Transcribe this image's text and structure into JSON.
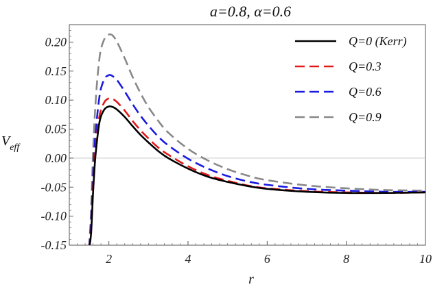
{
  "chart_data": {
    "type": "line",
    "title": "a=0.8, α=0.6",
    "xlabel": "r",
    "ylabel": "V_eff",
    "ylabel_main": "V",
    "ylabel_sub": "eff",
    "xlim": [
      1,
      10
    ],
    "ylim": [
      -0.15,
      0.23
    ],
    "x_ticks": [
      2,
      4,
      6,
      8,
      10
    ],
    "x_tick_labels": [
      "2",
      "4",
      "6",
      "8",
      "10"
    ],
    "y_ticks": [
      0.2,
      0.15,
      0.1,
      0.05,
      0.0,
      -0.05,
      -0.1,
      -0.15
    ],
    "y_tick_labels": [
      "0.20",
      "0.15",
      "0.10",
      "0.05",
      "0.00",
      "-0.05",
      "-0.10",
      "-0.15"
    ],
    "grid": false,
    "zero_line": true,
    "legend_position": "top-right",
    "series": [
      {
        "name": "Q=0 (Kerr)",
        "color": "#000000",
        "dash": "solid",
        "x": [
          1.5,
          1.55,
          1.6,
          1.65,
          1.7,
          1.75,
          1.8,
          1.9,
          2.0,
          2.05,
          2.1,
          2.2,
          2.4,
          2.6,
          2.8,
          3.0,
          3.25,
          3.5,
          4.0,
          4.5,
          5.0,
          5.5,
          6.0,
          7.0,
          8.0,
          9.0,
          10.0
        ],
        "y": [
          -0.155,
          -0.13,
          -0.06,
          -0.005,
          0.03,
          0.057,
          0.072,
          0.085,
          0.089,
          0.089,
          0.088,
          0.084,
          0.071,
          0.055,
          0.04,
          0.027,
          0.012,
          0.0,
          -0.018,
          -0.032,
          -0.041,
          -0.048,
          -0.053,
          -0.058,
          -0.06,
          -0.06,
          -0.059
        ]
      },
      {
        "name": "Q=0.3",
        "color": "#e01818",
        "dash": "dashed",
        "x": [
          1.5,
          1.55,
          1.6,
          1.65,
          1.7,
          1.75,
          1.8,
          1.9,
          2.0,
          2.05,
          2.1,
          2.2,
          2.4,
          2.6,
          2.8,
          3.0,
          3.25,
          3.5,
          4.0,
          4.5,
          5.0,
          5.5,
          6.0,
          7.0,
          8.0,
          9.0,
          10.0
        ],
        "y": [
          -0.155,
          -0.125,
          -0.05,
          0.005,
          0.04,
          0.068,
          0.083,
          0.098,
          0.103,
          0.103,
          0.102,
          0.097,
          0.082,
          0.064,
          0.048,
          0.034,
          0.018,
          0.006,
          -0.014,
          -0.029,
          -0.039,
          -0.047,
          -0.052,
          -0.057,
          -0.059,
          -0.06,
          -0.059
        ]
      },
      {
        "name": "Q=0.6",
        "color": "#1a1ae0",
        "dash": "dashed",
        "x": [
          1.5,
          1.55,
          1.6,
          1.65,
          1.7,
          1.75,
          1.8,
          1.9,
          2.0,
          2.05,
          2.1,
          2.2,
          2.4,
          2.6,
          2.8,
          3.0,
          3.25,
          3.5,
          4.0,
          4.5,
          5.0,
          5.5,
          6.0,
          7.0,
          8.0,
          9.0,
          10.0
        ],
        "y": [
          -0.155,
          -0.11,
          -0.03,
          0.03,
          0.07,
          0.1,
          0.12,
          0.138,
          0.143,
          0.143,
          0.141,
          0.135,
          0.115,
          0.093,
          0.073,
          0.056,
          0.037,
          0.022,
          -0.001,
          -0.018,
          -0.031,
          -0.04,
          -0.046,
          -0.053,
          -0.056,
          -0.058,
          -0.058
        ]
      },
      {
        "name": "Q=0.9",
        "color": "#888888",
        "dash": "dashed",
        "x": [
          1.5,
          1.55,
          1.6,
          1.65,
          1.7,
          1.75,
          1.8,
          1.9,
          2.0,
          2.05,
          2.1,
          2.2,
          2.4,
          2.6,
          2.8,
          3.0,
          3.25,
          3.5,
          4.0,
          4.5,
          5.0,
          5.5,
          6.0,
          7.0,
          8.0,
          9.0,
          10.0
        ],
        "y": [
          -0.155,
          -0.09,
          0.01,
          0.08,
          0.13,
          0.165,
          0.188,
          0.207,
          0.213,
          0.213,
          0.211,
          0.201,
          0.172,
          0.14,
          0.112,
          0.088,
          0.064,
          0.044,
          0.016,
          -0.004,
          -0.019,
          -0.03,
          -0.038,
          -0.047,
          -0.052,
          -0.055,
          -0.056
        ]
      }
    ]
  }
}
